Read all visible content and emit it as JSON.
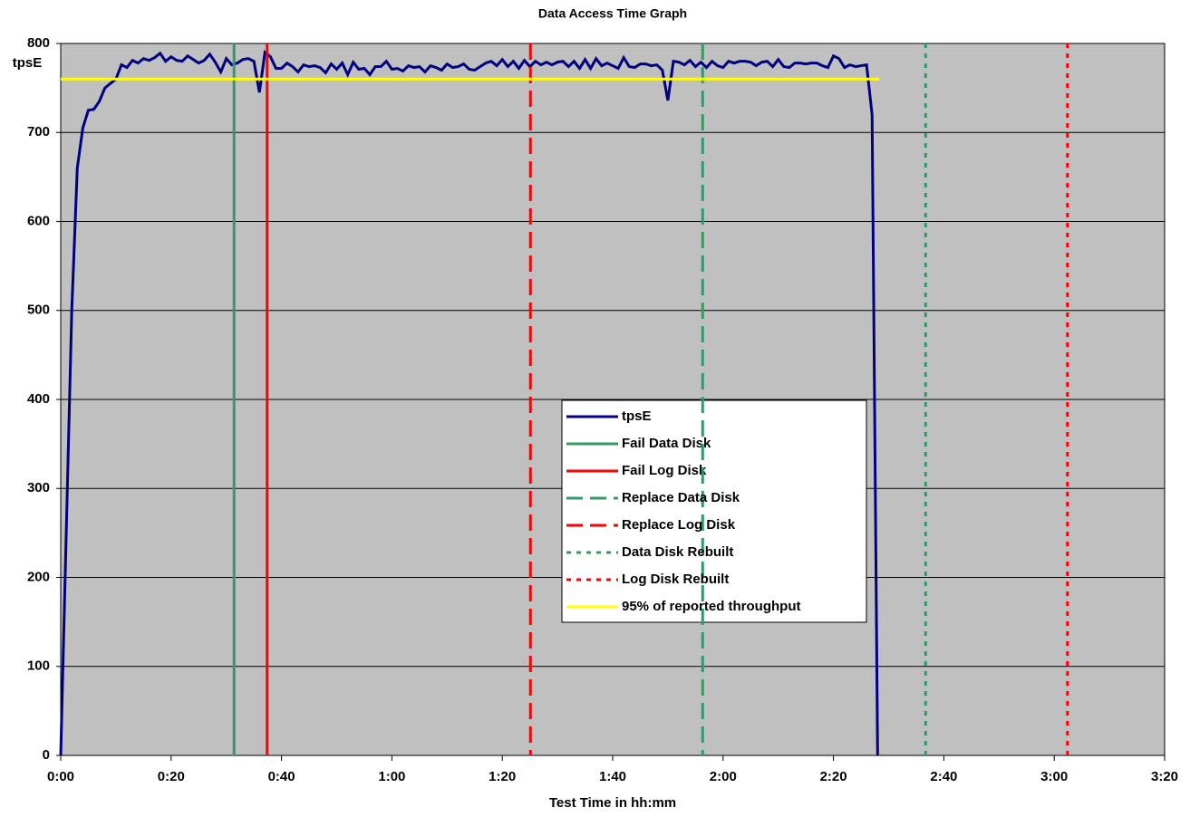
{
  "chart_data": {
    "type": "line",
    "title": "Data Access Time Graph",
    "xlabel": "Test Time in hh:mm",
    "ylabel": "tpsE",
    "background": "#c0c0c0",
    "grid": true,
    "xlim": [
      0,
      200
    ],
    "xticks": [
      {
        "value": 0,
        "label": "0:00"
      },
      {
        "value": 20,
        "label": "0:20"
      },
      {
        "value": 40,
        "label": "0:40"
      },
      {
        "value": 60,
        "label": "1:00"
      },
      {
        "value": 80,
        "label": "1:20"
      },
      {
        "value": 100,
        "label": "1:40"
      },
      {
        "value": 120,
        "label": "2:00"
      },
      {
        "value": 140,
        "label": "2:20"
      },
      {
        "value": 160,
        "label": "2:40"
      },
      {
        "value": 180,
        "label": "3:00"
      },
      {
        "value": 200,
        "label": "3:20"
      }
    ],
    "ylim": [
      0,
      800
    ],
    "yticks": [
      0,
      100,
      200,
      300,
      400,
      500,
      600,
      700,
      800
    ],
    "series": [
      {
        "name": "tpsE",
        "color": "#000080",
        "dash": "solid",
        "x": [
          0,
          1,
          2,
          3,
          4,
          5,
          6,
          7,
          8,
          9,
          10,
          11,
          12,
          13,
          14,
          15,
          16,
          17,
          18,
          19,
          20,
          21,
          22,
          23,
          24,
          25,
          26,
          27,
          28,
          29,
          30,
          31,
          32,
          33,
          34,
          35,
          36,
          37,
          38,
          39,
          40,
          41,
          42,
          43,
          44,
          45,
          46,
          47,
          48,
          49,
          50,
          51,
          52,
          53,
          54,
          55,
          56,
          57,
          58,
          59,
          60,
          61,
          62,
          63,
          64,
          65,
          66,
          67,
          68,
          69,
          70,
          71,
          72,
          73,
          74,
          75,
          76,
          77,
          78,
          79,
          80,
          81,
          82,
          83,
          84,
          85,
          86,
          87,
          88,
          89,
          90,
          91,
          92,
          93,
          94,
          95,
          96,
          97,
          98,
          99,
          100,
          101,
          102,
          103,
          104,
          105,
          106,
          107,
          108,
          109,
          110,
          111,
          112,
          113,
          114,
          115,
          116,
          117,
          118,
          119,
          120,
          121,
          122,
          123,
          124,
          125,
          126,
          127,
          128,
          129,
          130,
          131,
          132,
          133,
          134,
          135,
          136,
          137,
          138,
          139,
          140,
          141,
          142,
          143,
          144,
          145,
          146,
          147,
          148
        ],
        "values": [
          0,
          250,
          500,
          660,
          705,
          725,
          726,
          735,
          750,
          755,
          760,
          776,
          773,
          781,
          778,
          783,
          781,
          784,
          789,
          780,
          785,
          781,
          780,
          786,
          782,
          778,
          781,
          788,
          779,
          768,
          783,
          776,
          778,
          782,
          783,
          780,
          745,
          790,
          785,
          772,
          772,
          778,
          774,
          768,
          776,
          774,
          775,
          773,
          767,
          777,
          771,
          778,
          765,
          779,
          771,
          772,
          765,
          774,
          774,
          780,
          771,
          772,
          769,
          775,
          773,
          774,
          768,
          775,
          773,
          770,
          777,
          773,
          774,
          777,
          771,
          770,
          774,
          778,
          780,
          775,
          782,
          774,
          780,
          772,
          781,
          774,
          780,
          776,
          779,
          776,
          779,
          780,
          774,
          780,
          772,
          782,
          772,
          783,
          775,
          778,
          775,
          772,
          784,
          774,
          773,
          777,
          777,
          775,
          776,
          770,
          736,
          780,
          779,
          776,
          781,
          774,
          779,
          773,
          780,
          775,
          773,
          780,
          778,
          780,
          780,
          779,
          775,
          779,
          780,
          774,
          782,
          774,
          773,
          778,
          778,
          777,
          778,
          778,
          775,
          773,
          786,
          783,
          773,
          776,
          774,
          775,
          776,
          720,
          0
        ]
      },
      {
        "name": "Fail Data Disk",
        "color": "#339966",
        "dash": "solid",
        "x": 31.4
      },
      {
        "name": "Fail Log Disk",
        "color": "#ff0000",
        "dash": "solid",
        "x": 37.4
      },
      {
        "name": "Replace Data Disk",
        "color": "#339966",
        "dash": "dashed",
        "x": 116.3
      },
      {
        "name": "Replace Log Disk",
        "color": "#ff0000",
        "dash": "dashed",
        "x": 85.1
      },
      {
        "name": "Data Disk Rebuilt",
        "color": "#339966",
        "dash": "dotted",
        "x": 156.7
      },
      {
        "name": "Log Disk Rebuilt",
        "color": "#ff0000",
        "dash": "dotted",
        "x": 182.4
      },
      {
        "name": "95% of reported throughput",
        "color": "#ffff00",
        "dash": "solid",
        "x": [
          0,
          148.3
        ],
        "values": [
          760,
          760
        ]
      }
    ]
  }
}
